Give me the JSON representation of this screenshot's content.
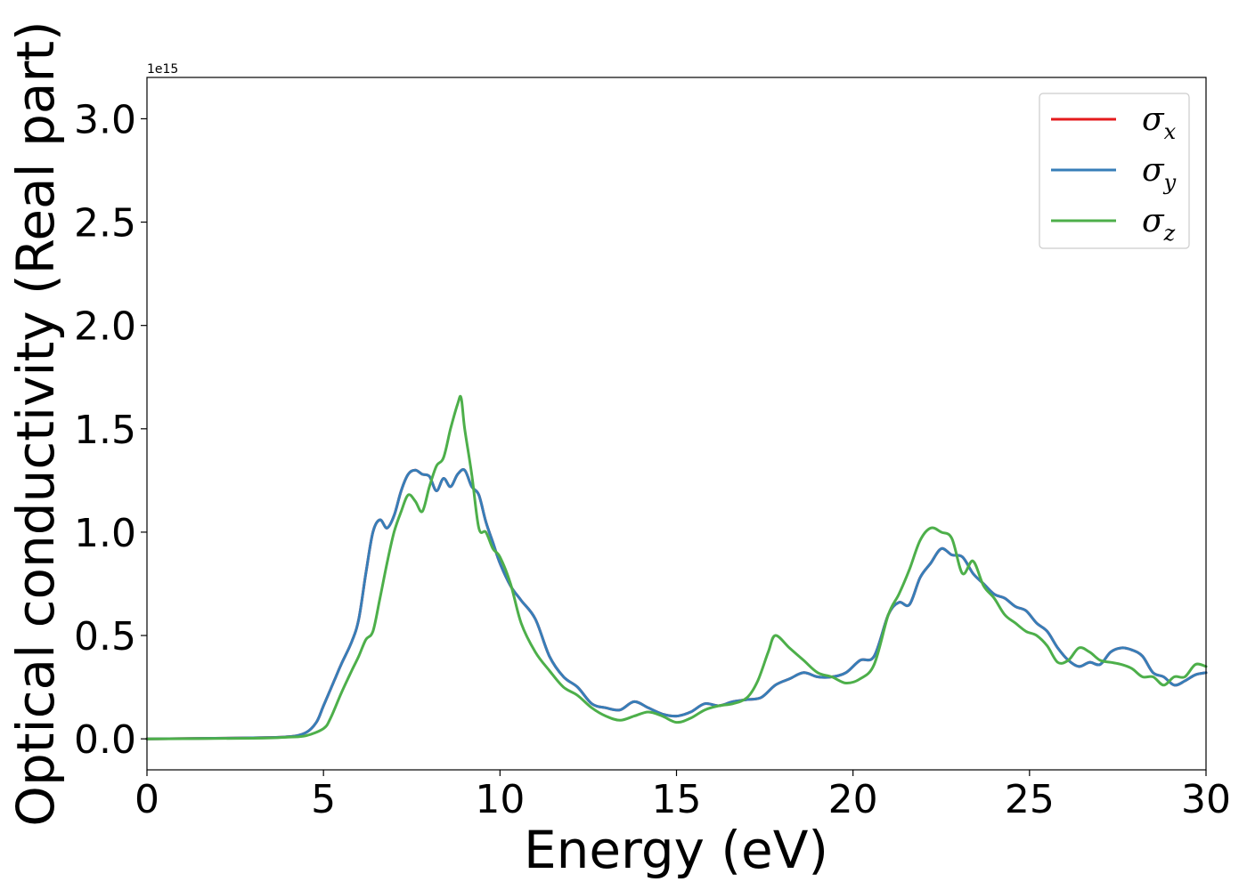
{
  "chart_data": {
    "type": "line",
    "xlabel": "Energy (eV)",
    "ylabel": "Optical conductivity (Real part)",
    "y_offset_label": "1e15",
    "xlim": [
      0,
      30
    ],
    "ylim": [
      -0.15,
      3.2
    ],
    "x_ticks": [
      0,
      5,
      10,
      15,
      20,
      25,
      30
    ],
    "x_tick_labels": [
      "0",
      "5",
      "10",
      "15",
      "20",
      "25",
      "30"
    ],
    "y_ticks": [
      0.0,
      0.5,
      1.0,
      1.5,
      2.0,
      2.5,
      3.0
    ],
    "y_tick_labels": [
      "0.0",
      "0.5",
      "1.0",
      "1.5",
      "2.0",
      "2.5",
      "3.0"
    ],
    "grid": false,
    "legend": {
      "position": "top-right"
    },
    "series": [
      {
        "name": "σ_x",
        "legend_symbol": "σ",
        "legend_subscript": "x",
        "color": "#e41a1c",
        "x": [
          0,
          3,
          4,
          4.5,
          4.8,
          5.0,
          5.3,
          5.5,
          5.8,
          6.0,
          6.2,
          6.4,
          6.6,
          6.8,
          7.0,
          7.2,
          7.4,
          7.6,
          7.8,
          8.0,
          8.2,
          8.4,
          8.6,
          8.8,
          9.0,
          9.2,
          9.4,
          9.6,
          9.8,
          10.0,
          10.3,
          10.6,
          11.0,
          11.4,
          11.8,
          12.2,
          12.6,
          13.0,
          13.4,
          13.8,
          14.2,
          14.6,
          15.0,
          15.4,
          15.8,
          16.2,
          16.6,
          17.0,
          17.4,
          17.8,
          18.2,
          18.6,
          19.0,
          19.4,
          19.8,
          20.2,
          20.6,
          21.0,
          21.3,
          21.6,
          21.9,
          22.2,
          22.5,
          22.8,
          23.1,
          23.4,
          23.7,
          24.0,
          24.3,
          24.6,
          24.9,
          25.2,
          25.5,
          25.8,
          26.1,
          26.4,
          26.7,
          27.0,
          27.3,
          27.6,
          27.9,
          28.2,
          28.5,
          28.8,
          29.1,
          29.4,
          29.7,
          30.0
        ],
        "y": [
          0.0,
          0.005,
          0.01,
          0.03,
          0.08,
          0.16,
          0.28,
          0.36,
          0.47,
          0.58,
          0.8,
          1.0,
          1.06,
          1.02,
          1.08,
          1.2,
          1.28,
          1.3,
          1.28,
          1.27,
          1.2,
          1.26,
          1.22,
          1.28,
          1.3,
          1.22,
          1.18,
          1.05,
          0.95,
          0.85,
          0.74,
          0.67,
          0.58,
          0.4,
          0.3,
          0.25,
          0.17,
          0.15,
          0.14,
          0.18,
          0.15,
          0.12,
          0.11,
          0.13,
          0.17,
          0.16,
          0.18,
          0.19,
          0.2,
          0.26,
          0.29,
          0.32,
          0.3,
          0.3,
          0.32,
          0.38,
          0.4,
          0.6,
          0.66,
          0.65,
          0.78,
          0.85,
          0.92,
          0.89,
          0.88,
          0.8,
          0.75,
          0.7,
          0.68,
          0.64,
          0.62,
          0.56,
          0.52,
          0.44,
          0.38,
          0.35,
          0.37,
          0.36,
          0.42,
          0.44,
          0.43,
          0.4,
          0.32,
          0.3,
          0.26,
          0.28,
          0.31,
          0.32
        ]
      },
      {
        "name": "σ_y",
        "legend_symbol": "σ",
        "legend_subscript": "y",
        "color": "#377eb8",
        "x": [
          0,
          3,
          4,
          4.5,
          4.8,
          5.0,
          5.3,
          5.5,
          5.8,
          6.0,
          6.2,
          6.4,
          6.6,
          6.8,
          7.0,
          7.2,
          7.4,
          7.6,
          7.8,
          8.0,
          8.2,
          8.4,
          8.6,
          8.8,
          9.0,
          9.2,
          9.4,
          9.6,
          9.8,
          10.0,
          10.3,
          10.6,
          11.0,
          11.4,
          11.8,
          12.2,
          12.6,
          13.0,
          13.4,
          13.8,
          14.2,
          14.6,
          15.0,
          15.4,
          15.8,
          16.2,
          16.6,
          17.0,
          17.4,
          17.8,
          18.2,
          18.6,
          19.0,
          19.4,
          19.8,
          20.2,
          20.6,
          21.0,
          21.3,
          21.6,
          21.9,
          22.2,
          22.5,
          22.8,
          23.1,
          23.4,
          23.7,
          24.0,
          24.3,
          24.6,
          24.9,
          25.2,
          25.5,
          25.8,
          26.1,
          26.4,
          26.7,
          27.0,
          27.3,
          27.6,
          27.9,
          28.2,
          28.5,
          28.8,
          29.1,
          29.4,
          29.7,
          30.0
        ],
        "y": [
          0.0,
          0.005,
          0.01,
          0.03,
          0.08,
          0.16,
          0.28,
          0.36,
          0.47,
          0.58,
          0.8,
          1.0,
          1.06,
          1.02,
          1.08,
          1.2,
          1.28,
          1.3,
          1.28,
          1.27,
          1.2,
          1.26,
          1.22,
          1.28,
          1.3,
          1.22,
          1.18,
          1.05,
          0.95,
          0.85,
          0.74,
          0.67,
          0.58,
          0.4,
          0.3,
          0.25,
          0.17,
          0.15,
          0.14,
          0.18,
          0.15,
          0.12,
          0.11,
          0.13,
          0.17,
          0.16,
          0.18,
          0.19,
          0.2,
          0.26,
          0.29,
          0.32,
          0.3,
          0.3,
          0.32,
          0.38,
          0.4,
          0.6,
          0.66,
          0.65,
          0.78,
          0.85,
          0.92,
          0.89,
          0.88,
          0.8,
          0.75,
          0.7,
          0.68,
          0.64,
          0.62,
          0.56,
          0.52,
          0.44,
          0.38,
          0.35,
          0.37,
          0.36,
          0.42,
          0.44,
          0.43,
          0.4,
          0.32,
          0.3,
          0.26,
          0.28,
          0.31,
          0.32
        ]
      },
      {
        "name": "σ_z",
        "legend_symbol": "σ",
        "legend_subscript": "z",
        "color": "#4daf4a",
        "x": [
          0,
          3,
          4,
          4.5,
          5.0,
          5.2,
          5.5,
          5.8,
          6.0,
          6.2,
          6.4,
          6.6,
          6.8,
          7.0,
          7.2,
          7.4,
          7.6,
          7.8,
          8.0,
          8.2,
          8.4,
          8.6,
          8.8,
          8.9,
          9.0,
          9.2,
          9.4,
          9.6,
          9.8,
          10.0,
          10.3,
          10.6,
          11.0,
          11.4,
          11.8,
          12.2,
          12.6,
          13.0,
          13.4,
          13.8,
          14.2,
          14.6,
          15.0,
          15.4,
          15.8,
          16.2,
          16.6,
          17.0,
          17.3,
          17.6,
          17.8,
          18.2,
          18.6,
          19.0,
          19.4,
          19.8,
          20.2,
          20.6,
          21.0,
          21.3,
          21.6,
          21.9,
          22.2,
          22.5,
          22.8,
          23.1,
          23.4,
          23.7,
          24.0,
          24.3,
          24.6,
          24.9,
          25.2,
          25.5,
          25.8,
          26.1,
          26.4,
          26.7,
          27.0,
          27.3,
          27.6,
          27.9,
          28.2,
          28.5,
          28.8,
          29.1,
          29.4,
          29.7,
          30.0
        ],
        "y": [
          0.0,
          0.003,
          0.008,
          0.015,
          0.05,
          0.1,
          0.22,
          0.33,
          0.4,
          0.48,
          0.52,
          0.68,
          0.85,
          1.0,
          1.1,
          1.18,
          1.15,
          1.1,
          1.22,
          1.32,
          1.36,
          1.5,
          1.62,
          1.65,
          1.5,
          1.28,
          1.02,
          1.0,
          0.92,
          0.88,
          0.75,
          0.56,
          0.42,
          0.33,
          0.25,
          0.21,
          0.15,
          0.11,
          0.09,
          0.11,
          0.13,
          0.11,
          0.08,
          0.1,
          0.14,
          0.16,
          0.17,
          0.2,
          0.28,
          0.42,
          0.5,
          0.44,
          0.38,
          0.32,
          0.3,
          0.27,
          0.29,
          0.36,
          0.6,
          0.7,
          0.82,
          0.96,
          1.02,
          1.0,
          0.97,
          0.8,
          0.86,
          0.74,
          0.68,
          0.6,
          0.56,
          0.52,
          0.5,
          0.45,
          0.37,
          0.38,
          0.44,
          0.42,
          0.38,
          0.37,
          0.36,
          0.34,
          0.3,
          0.3,
          0.26,
          0.3,
          0.3,
          0.36,
          0.35
        ]
      }
    ]
  }
}
